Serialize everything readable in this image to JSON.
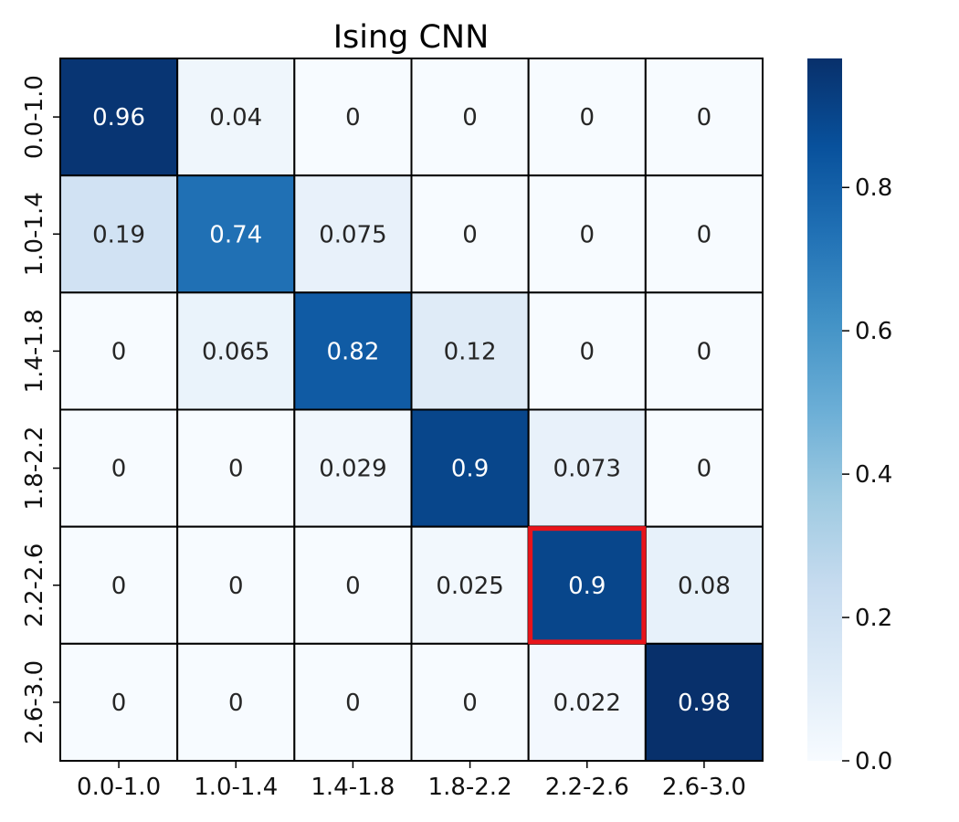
{
  "chart_data": {
    "type": "heatmap",
    "title": "Ising CNN",
    "xlabel": "",
    "ylabel": "",
    "x_categories": [
      "0.0-1.0",
      "1.0-1.4",
      "1.4-1.8",
      "1.8-2.2",
      "2.2-2.6",
      "2.6-3.0"
    ],
    "y_categories": [
      "0.0-1.0",
      "1.0-1.4",
      "1.4-1.8",
      "1.8-2.2",
      "2.2-2.6",
      "2.6-3.0"
    ],
    "values": [
      [
        0.96,
        0.04,
        0,
        0,
        0,
        0
      ],
      [
        0.19,
        0.74,
        0.075,
        0,
        0,
        0
      ],
      [
        0,
        0.065,
        0.82,
        0.12,
        0,
        0
      ],
      [
        0,
        0,
        0.029,
        0.9,
        0.073,
        0
      ],
      [
        0,
        0,
        0,
        0.025,
        0.9,
        0.08
      ],
      [
        0,
        0,
        0,
        0,
        0.022,
        0.98
      ]
    ],
    "cell_labels": [
      [
        "0.96",
        "0.04",
        "0",
        "0",
        "0",
        "0"
      ],
      [
        "0.19",
        "0.74",
        "0.075",
        "0",
        "0",
        "0"
      ],
      [
        "0",
        "0.065",
        "0.82",
        "0.12",
        "0",
        "0"
      ],
      [
        "0",
        "0",
        "0.029",
        "0.9",
        "0.073",
        "0"
      ],
      [
        "0",
        "0",
        "0",
        "0.025",
        "0.9",
        "0.08"
      ],
      [
        "0",
        "0",
        "0",
        "0",
        "0.022",
        "0.98"
      ]
    ],
    "colormap": "Blues",
    "colorbar": {
      "range": [
        0,
        0.98
      ],
      "ticks": [
        0.0,
        0.2,
        0.4,
        0.6,
        0.8
      ],
      "tick_labels": [
        "0.0",
        "0.2",
        "0.4",
        "0.6",
        "0.8"
      ]
    },
    "highlight": {
      "row": 4,
      "col": 4,
      "color": "#e8141a"
    },
    "grid": true
  }
}
